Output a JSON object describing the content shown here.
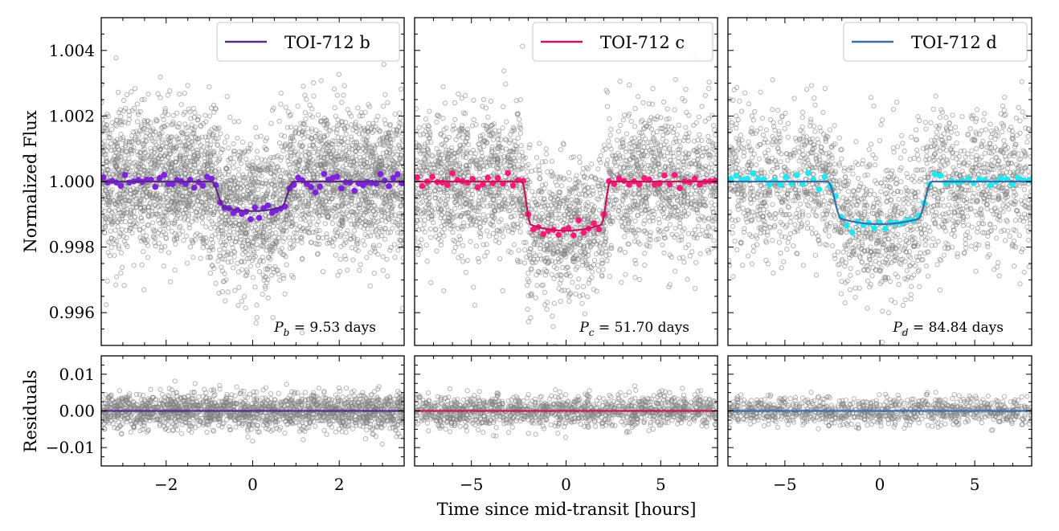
{
  "figure": {
    "xlabel": "Time since mid-transit [hours]",
    "ylabel_top": "Normalized Flux",
    "ylabel_bottom": "Residuals"
  },
  "chart_data": [
    {
      "type": "scatter",
      "name": "TOI-712 b",
      "legend": "TOI-712 b",
      "period_label": "P_b = 9.53 days",
      "period_symbol": "P",
      "period_sub": "b",
      "period_value": " = 9.53 days",
      "model_color": "#5b2a86",
      "binned_color": "#7e22e0",
      "raw_color": "#808080",
      "xlim": [
        -3.5,
        3.5
      ],
      "xticks": [
        -2,
        0,
        2
      ],
      "xtick_labels": [
        "−2",
        "0",
        "2"
      ],
      "ylim": [
        0.995,
        1.005
      ],
      "yticks": [
        0.996,
        0.998,
        1.0,
        1.002,
        1.004
      ],
      "ytick_labels": [
        "0.996",
        "0.998",
        "1.000",
        "1.002",
        "1.004"
      ],
      "model": {
        "depth": 0.0009,
        "t1": 0.95,
        "t2": 0.65
      },
      "raw_noise": 0.0011,
      "binned_points": 70,
      "resid_ylim": [
        -0.015,
        0.015
      ],
      "resid_yticks": [
        -0.01,
        0.0,
        0.01
      ],
      "resid_ytick_labels": [
        "−0.01",
        "0.00",
        "0.01"
      ],
      "resid_noise": 0.0025
    },
    {
      "type": "scatter",
      "name": "TOI-712 c",
      "legend": "TOI-712 c",
      "period_label": "P_c = 51.70 days",
      "period_symbol": "P",
      "period_sub": "c",
      "period_value": " = 51.70 days",
      "model_color": "#c2185b",
      "binned_color": "#ff1a7a",
      "raw_color": "#808080",
      "xlim": [
        -8,
        8
      ],
      "xticks": [
        -5,
        0,
        5
      ],
      "xtick_labels": [
        "−5",
        "0",
        "5"
      ],
      "ylim": [
        0.995,
        1.005
      ],
      "yticks": [
        0.996,
        0.998,
        1.0,
        1.002,
        1.004
      ],
      "model": {
        "depth": 0.0015,
        "t1": 2.35,
        "t2": 1.85
      },
      "raw_noise": 0.0011,
      "binned_points": 60,
      "resid_ylim": [
        -0.015,
        0.015
      ],
      "resid_yticks": [
        -0.01,
        0.0,
        0.01
      ],
      "resid_noise": 0.0022
    },
    {
      "type": "scatter",
      "name": "TOI-712 d",
      "legend": "TOI-712 d",
      "period_label": "P_d = 84.84 days",
      "period_symbol": "P",
      "period_sub": "d",
      "period_value": " = 84.84 days",
      "model_color": "#3a6ea5",
      "binned_color": "#1ee8f0",
      "raw_color": "#808080",
      "xlim": [
        -8,
        8
      ],
      "xticks": [
        -5,
        0,
        5
      ],
      "xtick_labels": [
        "−5",
        "0",
        "5"
      ],
      "ylim": [
        0.995,
        1.005
      ],
      "yticks": [
        0.996,
        0.998,
        1.0,
        1.002,
        1.004
      ],
      "model": {
        "depth": 0.0013,
        "t1": 2.75,
        "t2": 2.0
      },
      "raw_noise": 0.0011,
      "binned_points": 55,
      "resid_ylim": [
        -0.015,
        0.015
      ],
      "resid_yticks": [
        -0.01,
        0.0,
        0.01
      ],
      "resid_noise": 0.0018
    }
  ]
}
